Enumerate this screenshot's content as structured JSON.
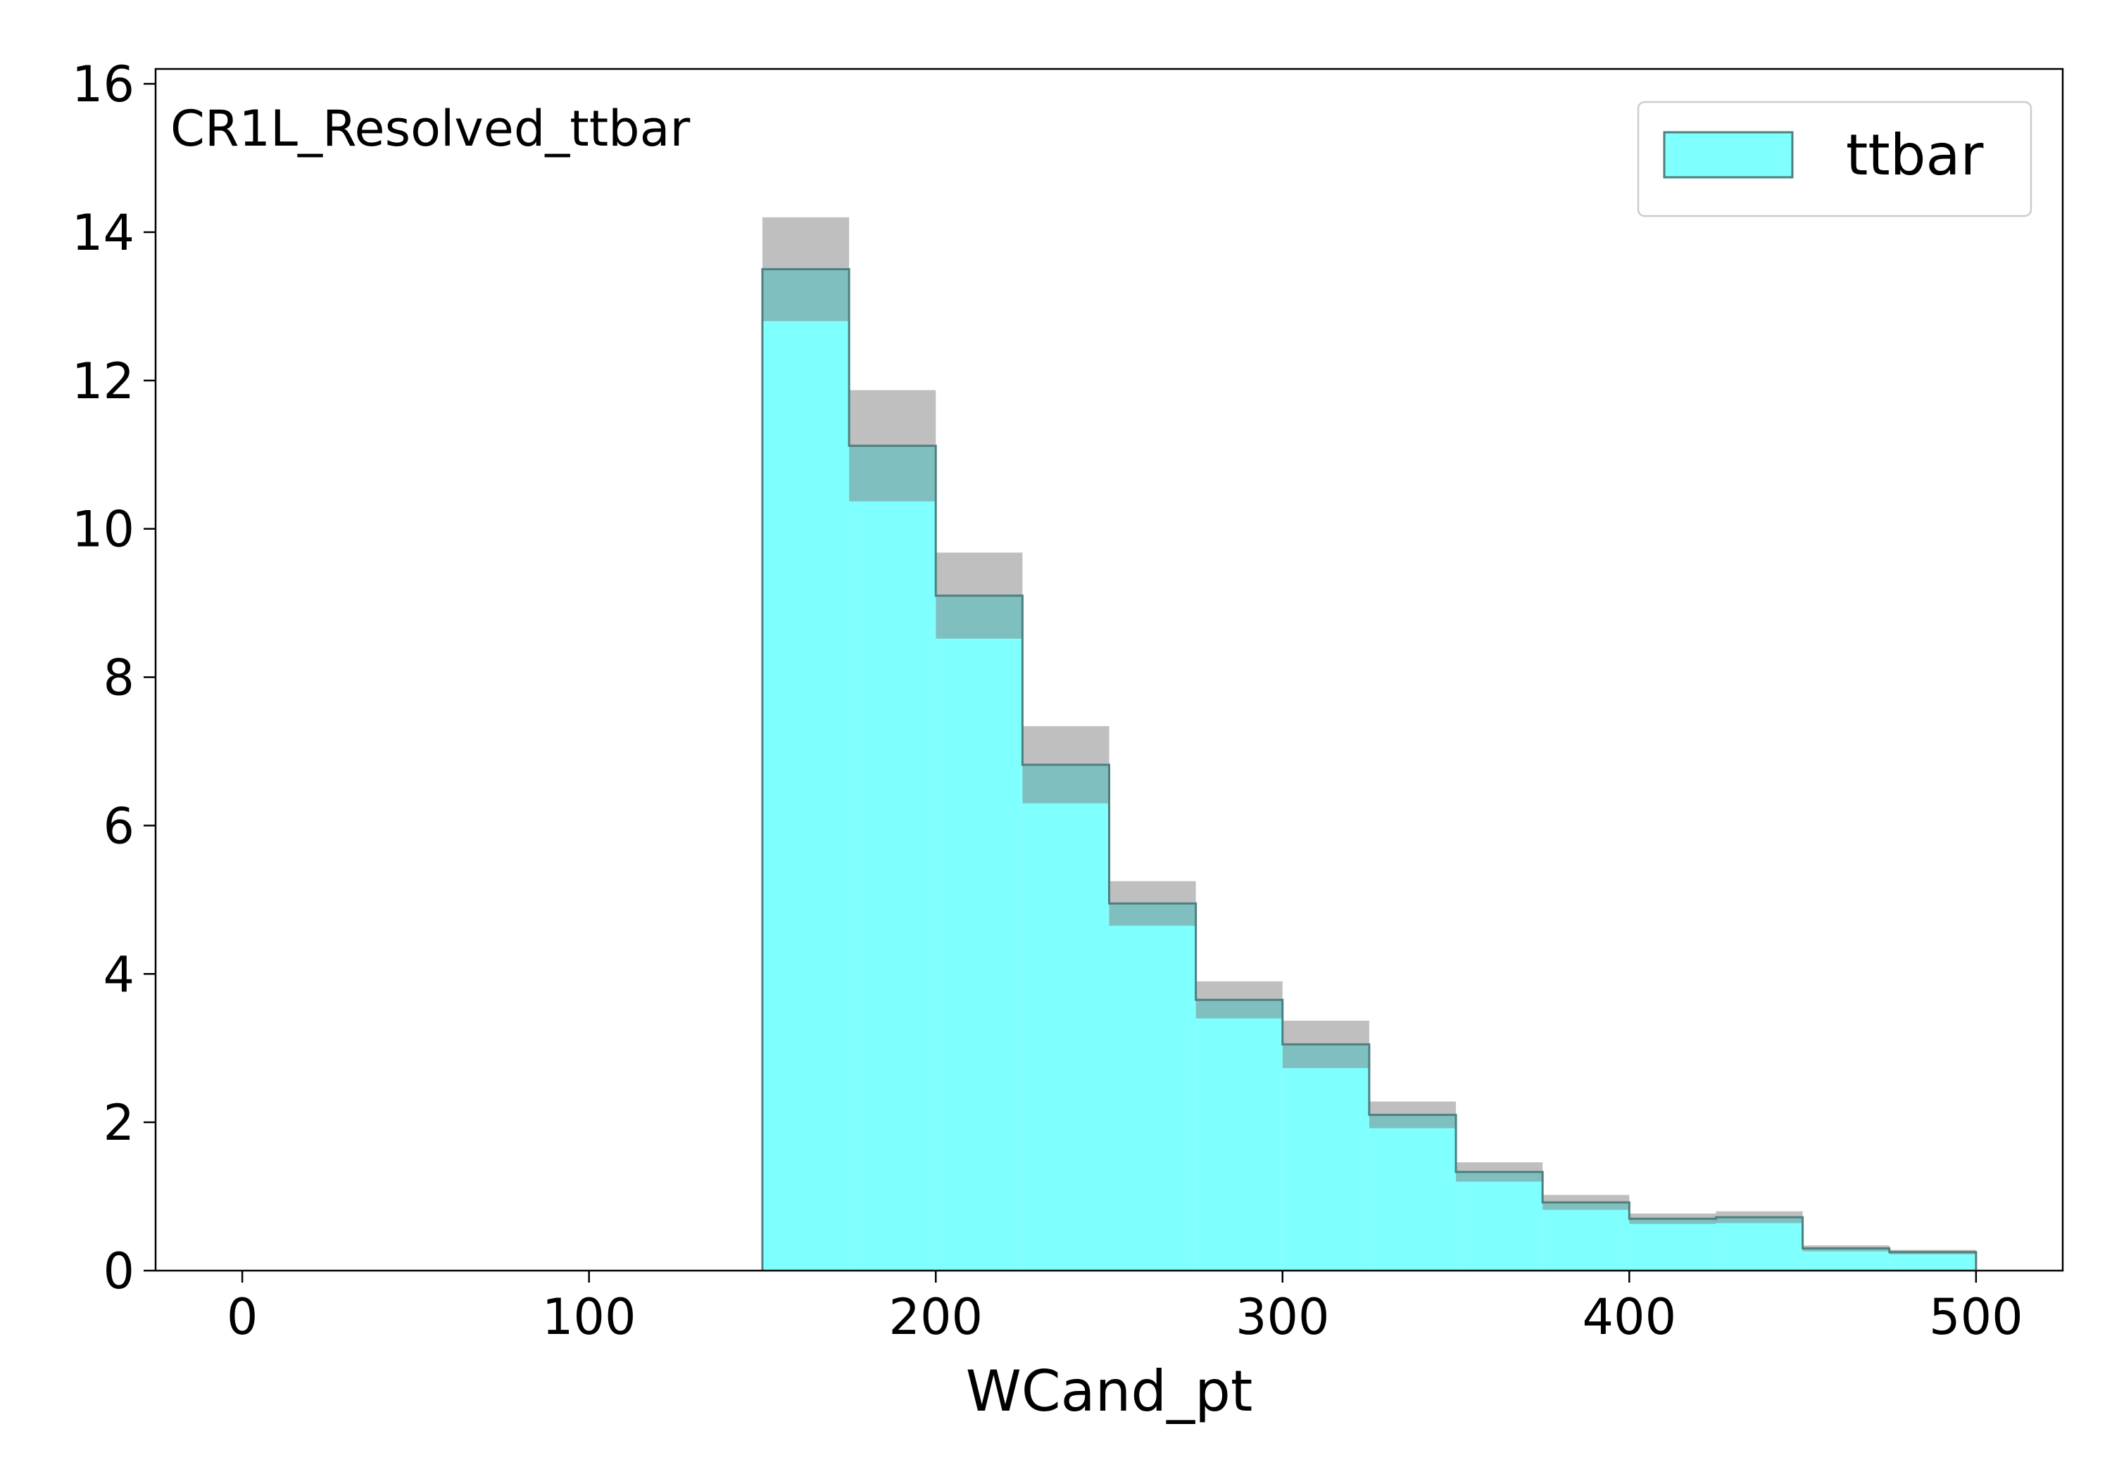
{
  "chart_data": {
    "type": "histogram",
    "region_label": "CR1L_Resolved_ttbar",
    "xlabel": "WCand_pt",
    "ylabel": "",
    "xlim": [
      -25,
      525
    ],
    "ylim": [
      0,
      16.2
    ],
    "x_ticks": [
      0,
      100,
      200,
      300,
      400,
      500
    ],
    "y_ticks": [
      0,
      2,
      4,
      6,
      8,
      10,
      12,
      14,
      16
    ],
    "grid": false,
    "legend_position": "top-right",
    "series": [
      {
        "name": "ttbar",
        "color": "#80ffff",
        "edge_color": "#4d7f7f",
        "uncertainty_color": "#808080",
        "bin_edges": [
          150,
          175,
          200,
          225,
          250,
          275,
          300,
          325,
          350,
          375,
          400,
          425,
          450,
          475,
          500
        ],
        "values": [
          13.5,
          11.12,
          9.1,
          6.82,
          4.95,
          3.65,
          3.05,
          2.1,
          1.33,
          0.92,
          0.7,
          0.72,
          0.3,
          0.25
        ],
        "uncertainty": [
          0.7,
          0.75,
          0.58,
          0.52,
          0.3,
          0.25,
          0.32,
          0.18,
          0.13,
          0.1,
          0.07,
          0.08,
          0.04,
          0.03
        ]
      }
    ]
  }
}
